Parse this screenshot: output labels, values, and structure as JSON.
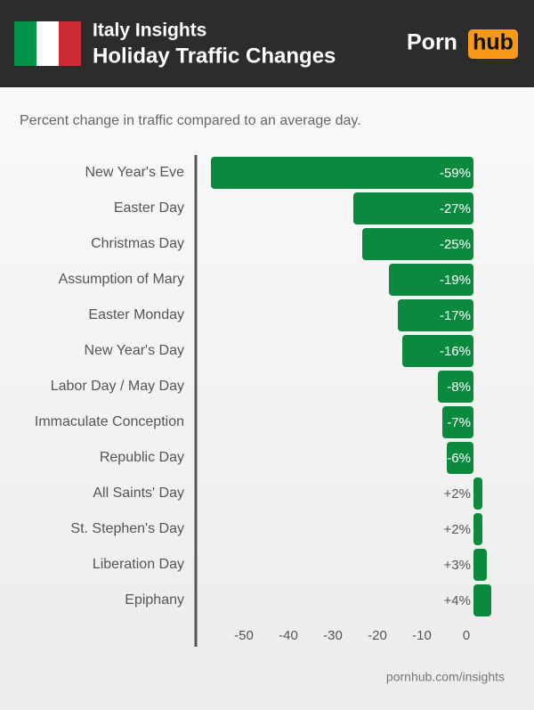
{
  "header": {
    "title": "Italy Insights",
    "subtitle": "Holiday Traffic Changes",
    "logo_left": "Porn",
    "logo_right": "hub"
  },
  "footer": "pornhub.com/insights",
  "chart_data": {
    "type": "barh",
    "title": "Percent change in traffic compared to an average day.",
    "categories": [
      "New Year's Eve",
      "Easter Day",
      "Christmas Day",
      "Assumption of Mary",
      "Easter Monday",
      "New Year's Day",
      "Labor Day / May Day",
      "Immaculate Conception",
      "Republic Day",
      "All Saints' Day",
      "St. Stephen's Day",
      "Liberation Day",
      "Epiphany"
    ],
    "values": [
      -59,
      -27,
      -25,
      -19,
      -17,
      -16,
      -8,
      -7,
      -6,
      2,
      2,
      3,
      4
    ],
    "value_labels": [
      "-59%",
      "-27%",
      "-25%",
      "-19%",
      "-17%",
      "-16%",
      "-8%",
      "-7%",
      "-6%",
      "+2%",
      "+2%",
      "+3%",
      "+4%"
    ],
    "color": "#0b8a3f",
    "xlim": [
      -62,
      6
    ],
    "xticks": [
      -50,
      -40,
      -30,
      -20,
      -10,
      0
    ]
  }
}
